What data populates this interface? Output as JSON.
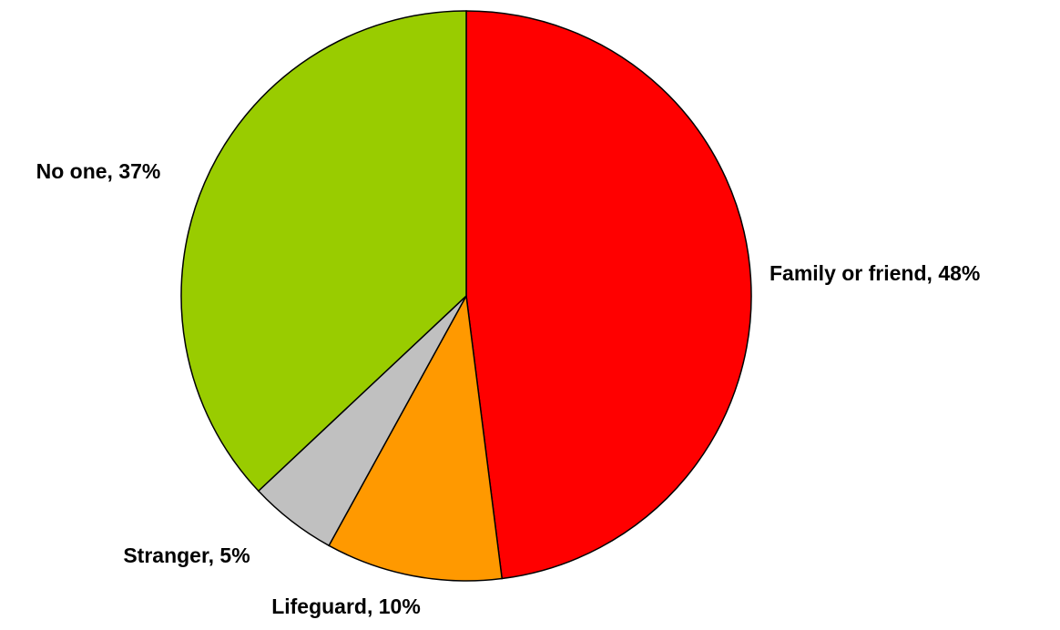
{
  "chart_data": {
    "type": "pie",
    "values": [
      48,
      10,
      5,
      37
    ],
    "value_labels": [
      "Family or friend, 48%",
      "Lifeguard, 10%",
      "Stranger, 5%",
      "No one, 37%"
    ],
    "colors": [
      "#ff0000",
      "#ff9900",
      "#c0c0c0",
      "#99cc00"
    ]
  }
}
